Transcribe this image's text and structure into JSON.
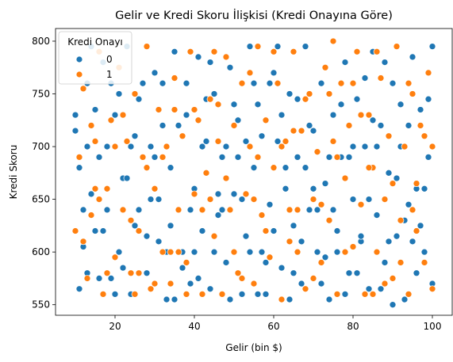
{
  "chart_data": {
    "type": "scatter",
    "title": "Gelir ve Kredi Skoru İlişkisi (Kredi Onayına Göre)",
    "xlabel": "Gelir (bin $)",
    "ylabel": "Kredi Skoru",
    "xlim": [
      5,
      105
    ],
    "ylim": [
      540,
      812
    ],
    "xticks": [
      20,
      40,
      60,
      80,
      100
    ],
    "yticks": [
      550,
      600,
      650,
      700,
      750,
      800
    ],
    "grid": false,
    "legend": {
      "title": "Kredi Onayı",
      "placement": "top-left",
      "entries": [
        "0",
        "1"
      ]
    },
    "colors": {
      "0": "#1f77b4",
      "1": "#ff7f0e"
    },
    "series": [
      {
        "name": "0",
        "color": "#1f77b4",
        "points": [
          [
            10,
            730
          ],
          [
            10,
            715
          ],
          [
            11,
            565
          ],
          [
            12,
            605
          ],
          [
            13,
            760
          ],
          [
            13,
            700
          ],
          [
            14,
            655
          ],
          [
            15,
            620
          ],
          [
            16,
            690
          ],
          [
            17,
            780
          ],
          [
            18,
            640
          ],
          [
            19,
            575
          ],
          [
            20,
            730
          ],
          [
            21,
            600
          ],
          [
            22,
            670
          ],
          [
            23,
            795
          ],
          [
            24,
            560
          ],
          [
            25,
            625
          ],
          [
            26,
            745
          ],
          [
            27,
            690
          ],
          [
            28,
            580
          ],
          [
            29,
            650
          ],
          [
            30,
            770
          ],
          [
            31,
            610
          ],
          [
            32,
            720
          ],
          [
            33,
            555
          ],
          [
            34,
            680
          ],
          [
            35,
            790
          ],
          [
            36,
            640
          ],
          [
            37,
            600
          ],
          [
            38,
            730
          ],
          [
            39,
            570
          ],
          [
            40,
            660
          ],
          [
            41,
            785
          ],
          [
            42,
            620
          ],
          [
            43,
            705
          ],
          [
            44,
            565
          ],
          [
            45,
            750
          ],
          [
            46,
            635
          ],
          [
            47,
            690
          ],
          [
            48,
            590
          ],
          [
            49,
            775
          ],
          [
            50,
            655
          ],
          [
            51,
            725
          ],
          [
            52,
            560
          ],
          [
            53,
            615
          ],
          [
            54,
            795
          ],
          [
            55,
            680
          ],
          [
            56,
            740
          ],
          [
            57,
            600
          ],
          [
            58,
            560
          ],
          [
            59,
            645
          ],
          [
            60,
            770
          ],
          [
            61,
            705
          ],
          [
            62,
            585
          ],
          [
            63,
            660
          ],
          [
            64,
            750
          ],
          [
            65,
            625
          ],
          [
            66,
            690
          ],
          [
            67,
            570
          ],
          [
            68,
            795
          ],
          [
            69,
            640
          ],
          [
            70,
            715
          ],
          [
            71,
            600
          ],
          [
            72,
            760
          ],
          [
            73,
            665
          ],
          [
            74,
            555
          ],
          [
            75,
            730
          ],
          [
            76,
            620
          ],
          [
            77,
            690
          ],
          [
            78,
            780
          ],
          [
            79,
            580
          ],
          [
            80,
            650
          ],
          [
            81,
            745
          ],
          [
            82,
            610
          ],
          [
            83,
            700
          ],
          [
            84,
            565
          ],
          [
            85,
            790
          ],
          [
            86,
            635
          ],
          [
            87,
            720
          ],
          [
            88,
            590
          ],
          [
            89,
            675
          ],
          [
            90,
            760
          ],
          [
            91,
            615
          ],
          [
            92,
            700
          ],
          [
            93,
            555
          ],
          [
            94,
            645
          ],
          [
            95,
            785
          ],
          [
            96,
            660
          ],
          [
            97,
            735
          ],
          [
            98,
            600
          ],
          [
            99,
            690
          ],
          [
            100,
            570
          ],
          [
            100,
            795
          ],
          [
            15,
            735
          ],
          [
            25,
            710
          ],
          [
            35,
            555
          ],
          [
            45,
            600
          ],
          [
            55,
            760
          ],
          [
            65,
            580
          ],
          [
            75,
            640
          ],
          [
            85,
            725
          ],
          [
            95,
            610
          ],
          [
            20,
            560
          ],
          [
            30,
            690
          ],
          [
            40,
            600
          ],
          [
            50,
            740
          ],
          [
            60,
            620
          ],
          [
            70,
            660
          ],
          [
            80,
            700
          ],
          [
            90,
            550
          ],
          [
            12,
            640
          ],
          [
            22,
            585
          ],
          [
            32,
            760
          ],
          [
            42,
            700
          ],
          [
            52,
            650
          ],
          [
            62,
            730
          ],
          [
            72,
            570
          ],
          [
            82,
            615
          ],
          [
            92,
            740
          ],
          [
            14,
            795
          ],
          [
            24,
            700
          ],
          [
            34,
            625
          ],
          [
            44,
            780
          ],
          [
            54,
            600
          ],
          [
            64,
            555
          ],
          [
            74,
            690
          ],
          [
            84,
            650
          ],
          [
            94,
            720
          ],
          [
            18,
            700
          ],
          [
            28,
            615
          ],
          [
            38,
            760
          ],
          [
            48,
            700
          ],
          [
            58,
            590
          ],
          [
            68,
            680
          ],
          [
            78,
            560
          ],
          [
            88,
            780
          ],
          [
            98,
            660
          ],
          [
            16,
            575
          ],
          [
            26,
            640
          ],
          [
            36,
            720
          ],
          [
            46,
            655
          ],
          [
            56,
            560
          ],
          [
            66,
            745
          ],
          [
            76,
            600
          ],
          [
            86,
            700
          ],
          [
            96,
            580
          ],
          [
            11,
            680
          ],
          [
            21,
            750
          ],
          [
            31,
            650
          ],
          [
            41,
            575
          ],
          [
            51,
            690
          ],
          [
            61,
            795
          ],
          [
            71,
            640
          ],
          [
            81,
            580
          ],
          [
            91,
            670
          ],
          [
            17,
            620
          ],
          [
            27,
            760
          ],
          [
            37,
            585
          ],
          [
            47,
            640
          ],
          [
            57,
            710
          ],
          [
            67,
            610
          ],
          [
            77,
            740
          ],
          [
            87,
            565
          ],
          [
            97,
            625
          ],
          [
            13,
            580
          ],
          [
            23,
            670
          ],
          [
            33,
            600
          ],
          [
            43,
            745
          ],
          [
            53,
            705
          ],
          [
            63,
            680
          ],
          [
            73,
            595
          ],
          [
            83,
            765
          ],
          [
            93,
            630
          ],
          [
            19,
            760
          ],
          [
            29,
            700
          ],
          [
            39,
            640
          ],
          [
            49,
            555
          ],
          [
            59,
            760
          ],
          [
            69,
            720
          ],
          [
            79,
            690
          ],
          [
            89,
            610
          ],
          [
            99,
            745
          ]
        ]
      },
      {
        "name": "1",
        "color": "#ff7f0e",
        "points": [
          [
            10,
            620
          ],
          [
            11,
            690
          ],
          [
            12,
            755
          ],
          [
            13,
            575
          ],
          [
            14,
            635
          ],
          [
            15,
            705
          ],
          [
            16,
            790
          ],
          [
            17,
            560
          ],
          [
            18,
            660
          ],
          [
            19,
            725
          ],
          [
            20,
            595
          ],
          [
            21,
            775
          ],
          [
            22,
            640
          ],
          [
            23,
            705
          ],
          [
            24,
            580
          ],
          [
            25,
            750
          ],
          [
            26,
            620
          ],
          [
            27,
            690
          ],
          [
            28,
            795
          ],
          [
            29,
            565
          ],
          [
            30,
            660
          ],
          [
            31,
            735
          ],
          [
            32,
            600
          ],
          [
            33,
            700
          ],
          [
            34,
            570
          ],
          [
            35,
            765
          ],
          [
            36,
            640
          ],
          [
            37,
            710
          ],
          [
            38,
            590
          ],
          [
            39,
            790
          ],
          [
            40,
            655
          ],
          [
            41,
            725
          ],
          [
            42,
            560
          ],
          [
            43,
            675
          ],
          [
            44,
            745
          ],
          [
            45,
            615
          ],
          [
            46,
            705
          ],
          [
            47,
            560
          ],
          [
            48,
            785
          ],
          [
            49,
            640
          ],
          [
            50,
            720
          ],
          [
            51,
            580
          ],
          [
            52,
            760
          ],
          [
            53,
            655
          ],
          [
            54,
            700
          ],
          [
            55,
            570
          ],
          [
            56,
            795
          ],
          [
            57,
            635
          ],
          [
            58,
            725
          ],
          [
            59,
            595
          ],
          [
            60,
            680
          ],
          [
            61,
            760
          ],
          [
            62,
            555
          ],
          [
            63,
            705
          ],
          [
            64,
            640
          ],
          [
            65,
            790
          ],
          [
            66,
            600
          ],
          [
            67,
            715
          ],
          [
            68,
            565
          ],
          [
            69,
            750
          ],
          [
            70,
            650
          ],
          [
            71,
            695
          ],
          [
            72,
            590
          ],
          [
            73,
            775
          ],
          [
            74,
            630
          ],
          [
            75,
            705
          ],
          [
            76,
            560
          ],
          [
            77,
            760
          ],
          [
            78,
            670
          ],
          [
            79,
            720
          ],
          [
            80,
            605
          ],
          [
            81,
            790
          ],
          [
            82,
            645
          ],
          [
            83,
            560
          ],
          [
            84,
            730
          ],
          [
            85,
            680
          ],
          [
            86,
            600
          ],
          [
            87,
            765
          ],
          [
            88,
            650
          ],
          [
            89,
            710
          ],
          [
            90,
            575
          ],
          [
            91,
            795
          ],
          [
            92,
            630
          ],
          [
            93,
            700
          ],
          [
            94,
            560
          ],
          [
            95,
            750
          ],
          [
            96,
            665
          ],
          [
            97,
            720
          ],
          [
            98,
            590
          ],
          [
            99,
            770
          ],
          [
            100,
            700
          ],
          [
            100,
            565
          ],
          [
            15,
            660
          ],
          [
            25,
            560
          ],
          [
            35,
            735
          ],
          [
            45,
            790
          ],
          [
            55,
            650
          ],
          [
            65,
            715
          ],
          [
            75,
            800
          ],
          [
            85,
            560
          ],
          [
            95,
            640
          ],
          [
            20,
            700
          ],
          [
            30,
            570
          ],
          [
            40,
            735
          ],
          [
            50,
            600
          ],
          [
            60,
            790
          ],
          [
            70,
            575
          ],
          [
            80,
            760
          ],
          [
            90,
            665
          ],
          [
            12,
            610
          ],
          [
            22,
            730
          ],
          [
            32,
            690
          ],
          [
            42,
            640
          ],
          [
            52,
            575
          ],
          [
            62,
            700
          ],
          [
            72,
            645
          ],
          [
            82,
            730
          ],
          [
            92,
            590
          ],
          [
            14,
            720
          ],
          [
            24,
            630
          ],
          [
            34,
            600
          ],
          [
            44,
            650
          ],
          [
            54,
            770
          ],
          [
            64,
            610
          ],
          [
            74,
            750
          ],
          [
            84,
            680
          ],
          [
            94,
            760
          ],
          [
            18,
            580
          ],
          [
            28,
            680
          ],
          [
            38,
            560
          ],
          [
            48,
            670
          ],
          [
            58,
            620
          ],
          [
            68,
            745
          ],
          [
            78,
            600
          ],
          [
            88,
            570
          ],
          [
            98,
            710
          ],
          [
            16,
            650
          ],
          [
            26,
            580
          ],
          [
            36,
            600
          ],
          [
            46,
            740
          ],
          [
            56,
            690
          ],
          [
            66,
            640
          ],
          [
            76,
            690
          ],
          [
            86,
            790
          ],
          [
            96,
            620
          ]
        ]
      }
    ]
  }
}
